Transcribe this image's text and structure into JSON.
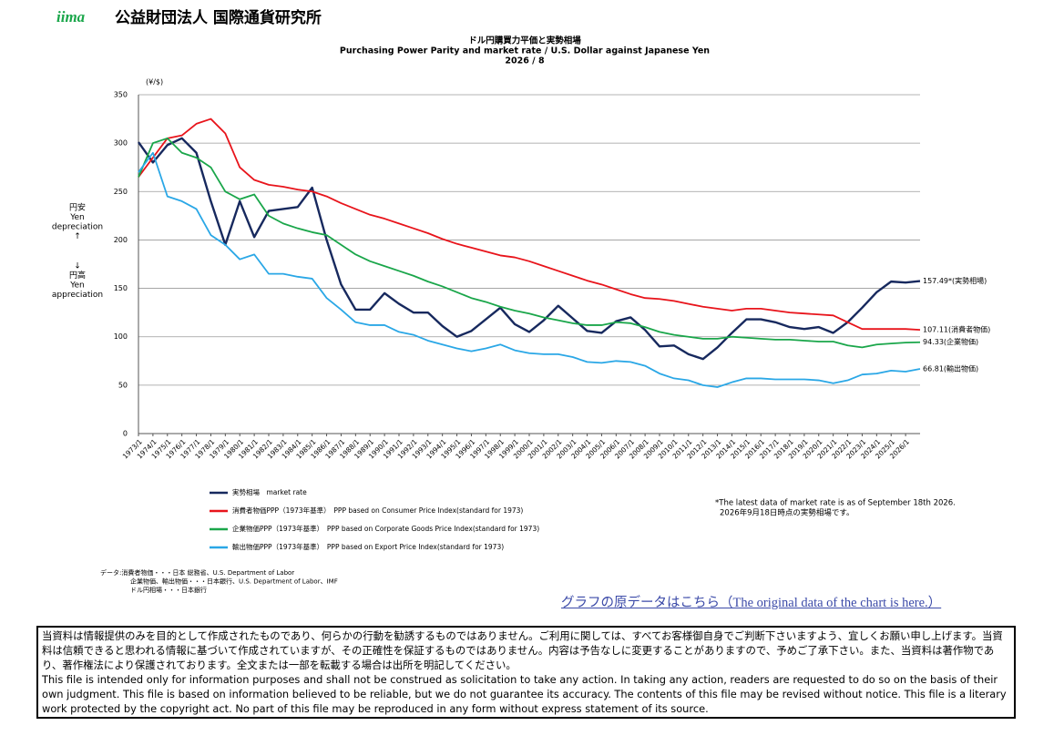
{
  "header": {
    "logo": "iima",
    "org": "公益財団法人 国際通貨研究所"
  },
  "chart_data": {
    "type": "line",
    "title": "ドル円購買力平価と実勢相場",
    "subtitle": "Purchasing Power Parity and market rate / U.S. Dollar against Japanese Yen",
    "date": "2026 / 8",
    "y_label": "(¥/$)",
    "annotation_up": [
      "円安",
      "Yen",
      "depreciation",
      "↑"
    ],
    "annotation_down": [
      "↓",
      "円高",
      "Yen",
      "appreciation"
    ],
    "categories": [
      "1973/1",
      "1974/1",
      "1975/1",
      "1976/1",
      "1977/1",
      "1978/1",
      "1979/1",
      "1980/1",
      "1981/1",
      "1982/1",
      "1983/1",
      "1984/1",
      "1985/1",
      "1986/1",
      "1987/1",
      "1988/1",
      "1989/1",
      "1990/1",
      "1991/1",
      "1992/1",
      "1993/1",
      "1994/1",
      "1995/1",
      "1996/1",
      "1997/1",
      "1998/1",
      "1999/1",
      "2000/1",
      "2001/1",
      "2002/1",
      "2003/1",
      "2004/1",
      "2005/1",
      "2006/1",
      "2007/1",
      "2008/1",
      "2009/1",
      "2010/1",
      "2011/1",
      "2012/1",
      "2013/1",
      "2014/1",
      "2015/1",
      "2016/1",
      "2017/1",
      "2018/1",
      "2019/1",
      "2020/1",
      "2021/1",
      "2022/1",
      "2023/1",
      "2024/1",
      "2025/1",
      "2026/1",
      null
    ],
    "series": [
      {
        "name": "実勢相場　market rate",
        "color": "#17295e",
        "width": 2.4,
        "end_label": "157.49*(実勢相場)",
        "values": [
          301,
          280,
          298,
          305,
          290,
          240,
          195,
          240,
          203,
          230,
          232,
          234,
          254,
          200,
          154,
          128,
          128,
          145,
          134,
          125,
          125,
          111,
          100,
          106,
          118,
          130,
          113,
          105,
          117,
          132,
          119,
          106,
          104,
          116,
          120,
          107,
          90,
          91,
          82,
          77,
          89,
          104,
          118,
          118,
          115,
          110,
          108,
          110,
          104,
          115,
          130,
          146,
          157,
          156,
          157.49
        ]
      },
      {
        "name": "消費者物価PPP（1973年基準）　PPP based on Consumer Price Index(standard for 1973)",
        "color": "#e8141b",
        "width": 1.8,
        "end_label": "107.11(消費者物価)",
        "values": [
          265,
          285,
          305,
          308,
          320,
          325,
          310,
          275,
          262,
          257,
          255,
          252,
          250,
          245,
          238,
          232,
          226,
          222,
          217,
          212,
          207,
          201,
          196,
          192,
          188,
          184,
          182,
          178,
          173,
          168,
          163,
          158,
          154,
          149,
          144,
          140,
          139,
          137,
          134,
          131,
          129,
          127,
          129,
          129,
          127,
          125,
          124,
          123,
          122,
          115,
          108,
          108,
          108,
          108,
          107.11
        ]
      },
      {
        "name": "企業物価PPP（1973年基準）　PPP based on Corporate Goods Price Index(standard for 1973)",
        "color": "#1aa64a",
        "width": 1.8,
        "end_label": "94.33(企業物価)",
        "values": [
          265,
          300,
          305,
          290,
          285,
          275,
          250,
          242,
          247,
          225,
          217,
          212,
          208,
          205,
          195,
          185,
          178,
          173,
          168,
          163,
          157,
          152,
          146,
          140,
          136,
          131,
          127,
          124,
          120,
          117,
          114,
          112,
          112,
          115,
          114,
          110,
          105,
          102,
          100,
          98,
          98,
          100,
          99,
          98,
          97,
          97,
          96,
          95,
          95,
          91,
          89,
          92,
          93,
          94,
          94.33
        ]
      },
      {
        "name": "輸出物価PPP（1973年基準）　PPP based on Export Price Index(standard for 1973)",
        "color": "#2aa7e6",
        "width": 1.8,
        "end_label": "66.81(輸出物価)",
        "values": [
          270,
          290,
          245,
          240,
          232,
          205,
          195,
          180,
          185,
          165,
          165,
          162,
          160,
          140,
          128,
          115,
          112,
          112,
          105,
          102,
          96,
          92,
          88,
          85,
          88,
          92,
          86,
          83,
          82,
          82,
          79,
          74,
          73,
          75,
          74,
          70,
          62,
          57,
          55,
          50,
          48,
          53,
          57,
          57,
          56,
          56,
          56,
          55,
          52,
          55,
          61,
          62,
          65,
          64,
          66.81
        ]
      }
    ],
    "ylim": [
      0,
      350
    ],
    "yticks": [
      0,
      50,
      100,
      150,
      200,
      250,
      300,
      350
    ],
    "grid": true,
    "note": [
      "*The latest data of market rate is as of September 18th 2026.",
      "2026年9月18日時点の実勢相場です。"
    ],
    "source": [
      "データ:消費者物価・・・日本 総務省、U.S. Department of Labor",
      "企業物価、輸出物価・・・日本銀行、U.S. Department of Labor、IMF",
      "ドル円相場・・・日本銀行"
    ]
  },
  "link": "グラフの原データはこちら（The original data of the chart is here.）",
  "disclaimer": {
    "ja": "当資料は情報提供のみを目的として作成されたものであり、何らかの行動を勧誘するものではありません。ご利用に関しては、すべてお客様御自身でご判断下さいますよう、宜しくお願い申し上げます。当資料は信頼できると思われる情報に基づいて作成されていますが、その正確性を保証するものではありません。内容は予告なしに変更することがありますので、予めご了承下さい。また、当資料は著作物であり、著作権法により保護されております。全文または一部を転載する場合は出所を明記してください。",
    "en": "This file is intended only for information purposes and shall not be construed as solicitation to take any action. In taking any action, readers are requested to do so on the basis of their own judgment. This file is based on information believed to be reliable, but we do not guarantee its accuracy. The contents of this file may be revised without notice. This file is a literary work protected by the copyright act. No part of this file may be reproduced in any form without express statement of its source."
  }
}
